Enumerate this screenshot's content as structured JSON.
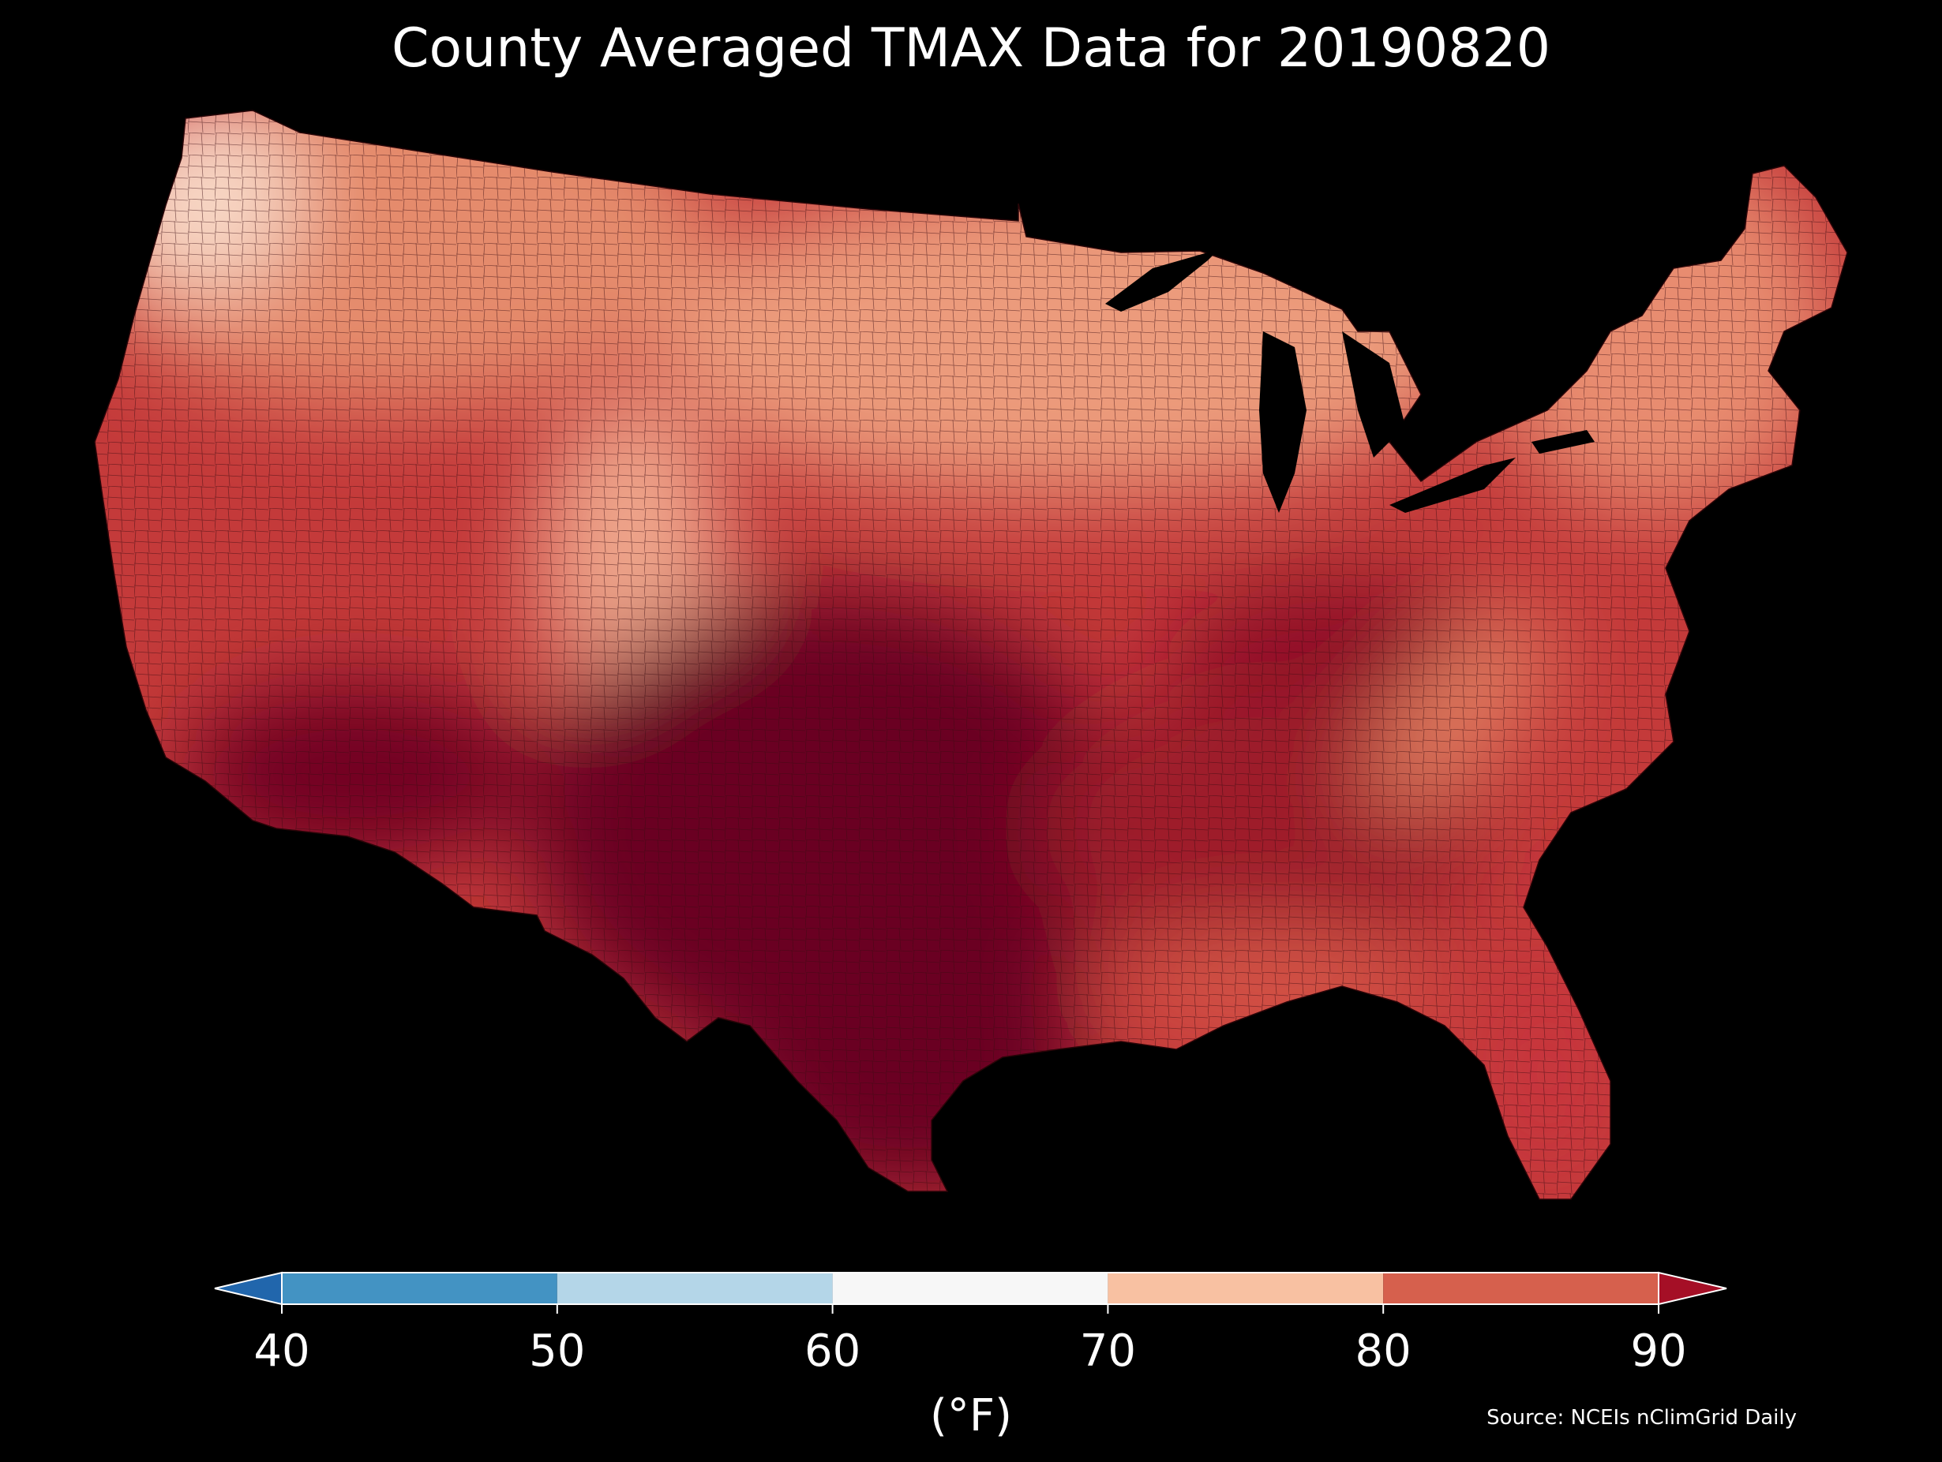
{
  "title": "County Averaged TMAX Data for 20190820",
  "colorbar": {
    "ticks": [
      "40",
      "50",
      "60",
      "70",
      "80",
      "90"
    ],
    "unit": "(°F)",
    "bins": [
      {
        "range": [
          40,
          50
        ],
        "color": "#4393c3"
      },
      {
        "range": [
          50,
          60
        ],
        "color": "#b4d6e8"
      },
      {
        "range": [
          60,
          70
        ],
        "color": "#f7f7f7"
      },
      {
        "range": [
          70,
          80
        ],
        "color": "#f8c1a2"
      },
      {
        "range": [
          80,
          90
        ],
        "color": "#d6604d"
      }
    ],
    "under_color": "#2166ac",
    "over_color": "#a50f26"
  },
  "source": "Source: NCEIs nClimGrid Daily",
  "map": {
    "background": "#000000",
    "palette": {
      "very_hot": "#6a0020",
      "hot": "#8e0f28",
      "warm": "#b81e2f",
      "mild": "#d8584a",
      "cool": "#ea8e6e",
      "cold": "#f6c6ad",
      "coldest": "#fbe8de"
    }
  }
}
